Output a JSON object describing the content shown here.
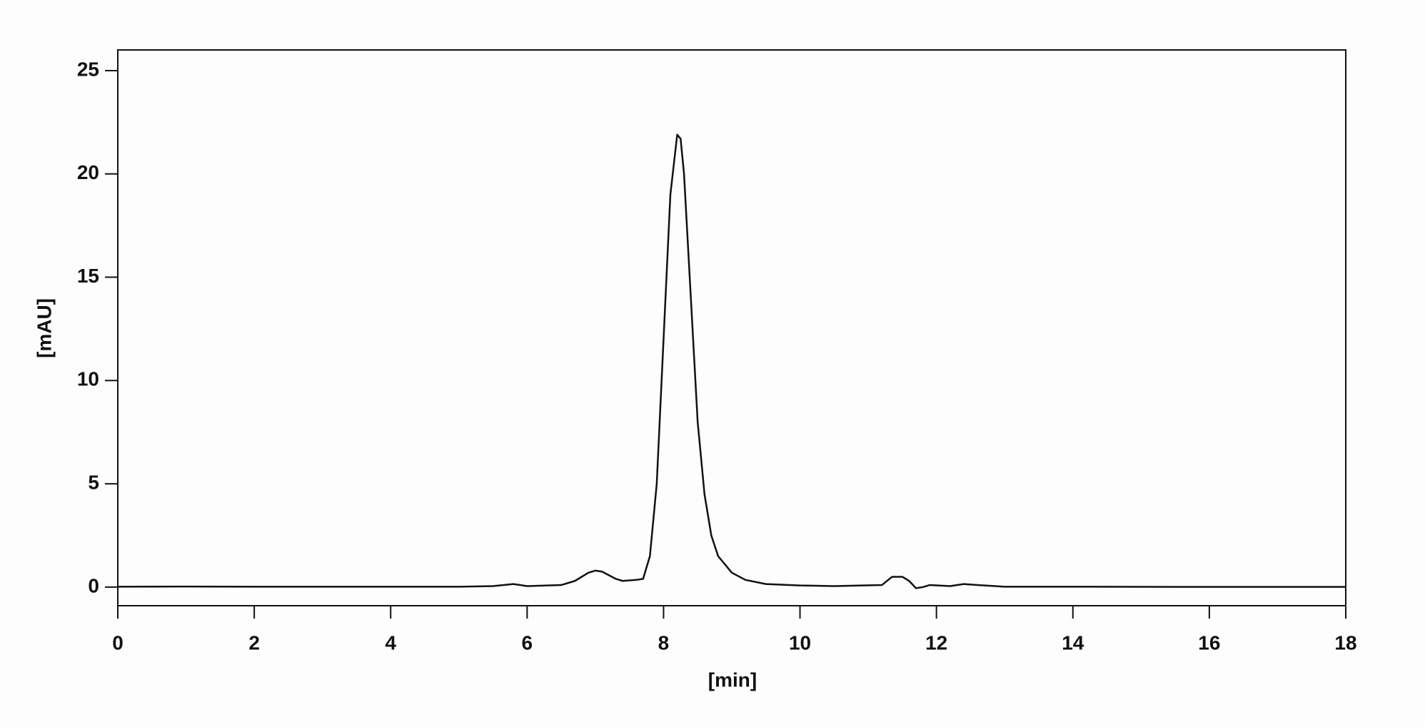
{
  "chart_data": {
    "type": "line",
    "xlabel": "[min]",
    "ylabel": "[mAU]",
    "x": [
      0,
      1,
      2,
      3,
      4,
      5,
      5.5,
      5.8,
      6.0,
      6.5,
      6.7,
      6.9,
      7.0,
      7.1,
      7.3,
      7.4,
      7.6,
      7.7,
      7.8,
      7.9,
      8.0,
      8.1,
      8.2,
      8.25,
      8.3,
      8.4,
      8.5,
      8.6,
      8.7,
      8.8,
      9.0,
      9.2,
      9.5,
      10,
      10.5,
      11.2,
      11.35,
      11.5,
      11.6,
      11.7,
      11.8,
      11.9,
      12.2,
      12.4,
      12.6,
      13,
      14,
      16,
      18
    ],
    "series": [
      {
        "color": "#111111",
        "values": [
          0.02,
          0.03,
          0.02,
          0.02,
          0.02,
          0.02,
          0.05,
          0.15,
          0.05,
          0.1,
          0.3,
          0.7,
          0.8,
          0.75,
          0.4,
          0.3,
          0.35,
          0.4,
          1.5,
          5,
          12,
          19,
          21.9,
          21.7,
          20,
          14,
          8,
          4.5,
          2.5,
          1.5,
          0.7,
          0.35,
          0.15,
          0.08,
          0.05,
          0.1,
          0.5,
          0.5,
          0.3,
          -0.05,
          0.0,
          0.1,
          0.05,
          0.15,
          0.1,
          0.02,
          0.02,
          0.01,
          0.01
        ]
      }
    ],
    "xlim": [
      0,
      18
    ],
    "xticks": [
      0,
      2,
      4,
      6,
      8,
      10,
      12,
      14,
      16,
      18
    ],
    "ylim": [
      -0.9,
      26
    ],
    "yticks": [
      0,
      5,
      10,
      15,
      20,
      25
    ],
    "grid": false
  }
}
